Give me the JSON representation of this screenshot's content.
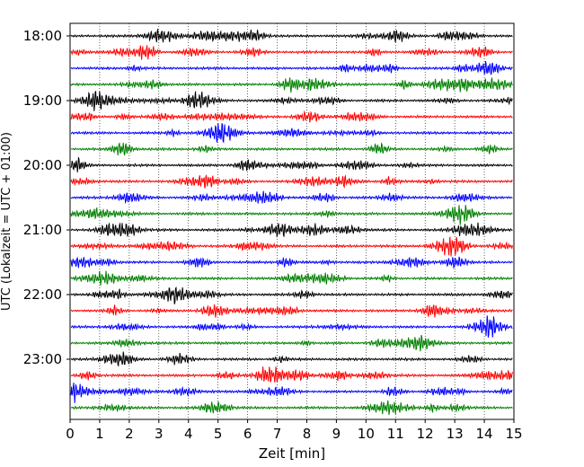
{
  "chart_data": {
    "type": "line",
    "title": "",
    "xlabel": "Zeit  [min]",
    "ylabel": "UTC (Lokalzeit = UTC + 01:00)",
    "xlim": [
      0,
      15
    ],
    "x_ticks": [
      0,
      1,
      2,
      3,
      4,
      5,
      6,
      7,
      8,
      9,
      10,
      11,
      12,
      13,
      14,
      15
    ],
    "y_tick_labels": [
      "18:00",
      "19:00",
      "20:00",
      "21:00",
      "22:00",
      "23:00"
    ],
    "grid": "vertical dotted lines at each minute",
    "trace_interval_minutes": 15,
    "trace_count": 24,
    "trace_start_times": [
      "18:00",
      "18:15",
      "18:30",
      "18:45",
      "19:00",
      "19:15",
      "19:30",
      "19:45",
      "20:00",
      "20:15",
      "20:30",
      "20:45",
      "21:00",
      "21:15",
      "21:30",
      "21:45",
      "22:00",
      "22:15",
      "22:30",
      "22:45",
      "23:00",
      "23:15",
      "23:30",
      "23:45"
    ],
    "trace_colors": [
      "#000000",
      "#ff0000",
      "#0000ff",
      "#008000"
    ]
  }
}
